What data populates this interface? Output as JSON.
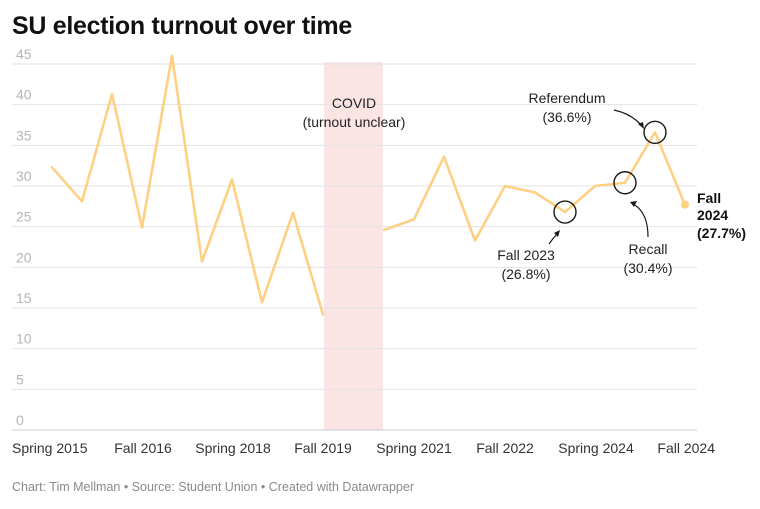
{
  "title": "SU election turnout over time",
  "footer": "Chart: Tim Mellman • Source: Student Union • Created with Datawrapper",
  "chart_data": {
    "type": "line",
    "title": "SU election turnout over time",
    "xlabel": "",
    "ylabel": "",
    "ylim": [
      0,
      45
    ],
    "yticks": [
      0,
      5,
      10,
      15,
      20,
      25,
      30,
      35,
      40,
      45
    ],
    "grid": true,
    "line_color": "#fdd083",
    "x_tick_labels": [
      "Spring 2015",
      "Fall 2016",
      "Spring 2018",
      "Fall 2019",
      "Spring 2021",
      "Fall 2022",
      "Spring 2024",
      "Fall 2024"
    ],
    "series": [
      {
        "segments": [
          [
            32.3,
            28.1,
            41.3,
            24.9,
            46.0,
            20.7,
            30.8,
            15.7,
            26.7,
            14.2
          ],
          [
            24.6,
            25.9,
            33.6,
            23.3,
            30.0,
            29.2,
            26.8,
            30.0,
            30.4,
            36.6,
            27.7
          ]
        ]
      }
    ],
    "shaded_region": {
      "label": "COVID\n(turnout unclear)",
      "color": "#fbe4e4"
    },
    "annotations": [
      {
        "label": "Fall 2023",
        "sub": "(26.8%)",
        "value": 26.8
      },
      {
        "label": "Recall",
        "sub": "(30.4%)",
        "value": 30.4
      },
      {
        "label": "Referendum",
        "sub": "(36.6%)",
        "value": 36.6
      }
    ],
    "end_label": {
      "line1": "Fall",
      "line2": "2024",
      "line3": "(27.7%)",
      "value": 27.7
    }
  }
}
